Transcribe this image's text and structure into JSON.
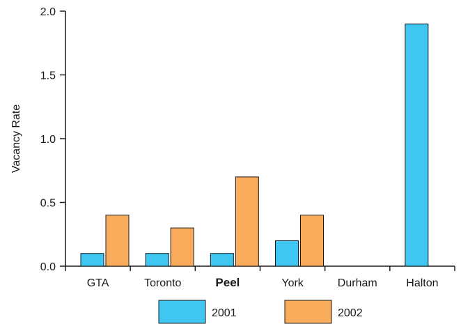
{
  "chart_data": {
    "type": "bar",
    "title": "",
    "xlabel": "",
    "ylabel": "Vacancy Rate",
    "ylim": [
      0,
      2.0
    ],
    "yticks": [
      "0.0",
      "0.5",
      "1.0",
      "1.5",
      "2.0"
    ],
    "ytick_values": [
      0,
      0.5,
      1.0,
      1.5,
      2.0
    ],
    "categories": [
      "GTA",
      "Toronto",
      "Peel",
      "York",
      "Durham",
      "Halton"
    ],
    "highlighted_category": "Peel",
    "series": [
      {
        "name": "2001",
        "color": "#3fc6f1",
        "values": [
          0.1,
          0.1,
          0.1,
          0.2,
          null,
          1.9
        ]
      },
      {
        "name": "2002",
        "color": "#f9ac5c",
        "values": [
          0.4,
          0.3,
          0.7,
          0.4,
          null,
          null
        ]
      }
    ],
    "grid": false,
    "legend_position": "bottom-center"
  }
}
